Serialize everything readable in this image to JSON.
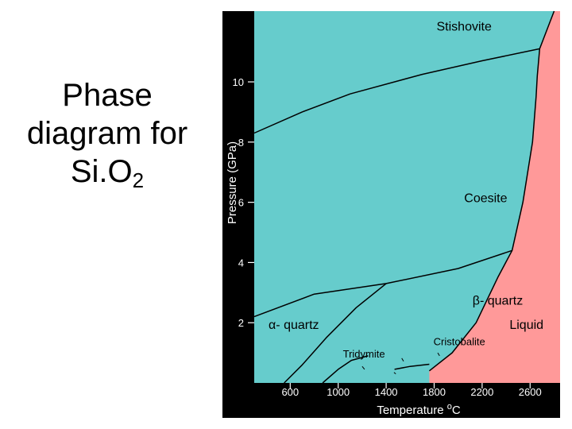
{
  "slide": {
    "title_line1": "Phase",
    "title_line2": "diagram for",
    "title_formula_main": "Si.O",
    "title_formula_sub": "2"
  },
  "chart_data": {
    "type": "phase-diagram",
    "title": "Phase diagram for SiO2",
    "xlabel": "Temperature °C",
    "xlabel_main": "Temperature ",
    "xlabel_sup": "o",
    "xlabel_unit": "C",
    "ylabel": "Pressure (GPa)",
    "xlim": [
      300,
      2850
    ],
    "ylim": [
      0,
      12.35
    ],
    "x_ticks": [
      600,
      1000,
      1400,
      1800,
      2200,
      2600
    ],
    "y_ticks": [
      2,
      4,
      6,
      8,
      10
    ],
    "colors": {
      "background": "#000000",
      "solid": "#66CCCC",
      "liquid": "#FF9999",
      "line": "#000000",
      "axis_text": "#ffffff",
      "label_text": "#000000"
    },
    "regions": [
      {
        "id": "liquid",
        "name": "Liquid",
        "at": [
          2570,
          1.8
        ],
        "color": "#FF9999"
      }
    ],
    "phase_labels": [
      {
        "id": "stishovite",
        "text": "Stishovite",
        "at": [
          2050,
          11.7
        ]
      },
      {
        "id": "coesite",
        "text": "Coesite",
        "at": [
          2230,
          6.0
        ]
      },
      {
        "id": "beta-quartz",
        "text": "β- quartz",
        "at": [
          2330,
          2.6
        ]
      },
      {
        "id": "alpha-quartz",
        "text": "α- quartz",
        "at": [
          630,
          1.8
        ]
      },
      {
        "id": "cristobalite",
        "text": "Cristobalite",
        "at": [
          2010,
          1.25
        ]
      },
      {
        "id": "tridymite",
        "text": "Tridymite",
        "at": [
          1215,
          0.85
        ]
      },
      {
        "id": "liquid",
        "text": "Liquid",
        "at": [
          2570,
          1.8
        ]
      }
    ],
    "boundaries": [
      {
        "id": "stishovite-coesite",
        "points": [
          [
            300,
            8.3
          ],
          [
            700,
            9.0
          ],
          [
            1100,
            9.6
          ],
          [
            1700,
            10.25
          ],
          [
            2200,
            10.7
          ],
          [
            2680,
            11.1
          ]
        ]
      },
      {
        "id": "coesite-quartz",
        "points": [
          [
            300,
            2.2
          ],
          [
            800,
            2.95
          ],
          [
            1400,
            3.3
          ],
          [
            2000,
            3.8
          ],
          [
            2450,
            4.4
          ]
        ]
      },
      {
        "id": "liquidus",
        "points": [
          [
            1760,
            0.4
          ],
          [
            1950,
            1.0
          ],
          [
            2150,
            2.0
          ],
          [
            2330,
            3.5
          ],
          [
            2450,
            4.4
          ],
          [
            2540,
            6.0
          ],
          [
            2620,
            8.0
          ],
          [
            2650,
            9.5
          ],
          [
            2660,
            10.2
          ],
          [
            2680,
            11.1
          ],
          [
            2800,
            12.35
          ]
        ]
      },
      {
        "id": "alpha-beta-quartz",
        "points": [
          [
            550,
            0.0
          ],
          [
            700,
            0.6
          ],
          [
            900,
            1.5
          ],
          [
            1150,
            2.5
          ],
          [
            1400,
            3.3
          ]
        ]
      },
      {
        "id": "tridymite-beta-quartz",
        "points": [
          [
            870,
            0.0
          ],
          [
            1000,
            0.45
          ],
          [
            1110,
            0.75
          ],
          [
            1250,
            0.9
          ]
        ]
      },
      {
        "id": "cristobalite-tridymite",
        "points": [
          [
            1470,
            0.45
          ],
          [
            1600,
            0.55
          ],
          [
            1760,
            0.62
          ]
        ]
      }
    ],
    "markers": [
      {
        "id": "tick-tridymite",
        "points": [
          [
            1200,
            0.55
          ],
          [
            1220,
            0.45
          ]
        ]
      },
      {
        "id": "tick-cristobalite",
        "points": [
          [
            1530,
            0.82
          ],
          [
            1545,
            0.72
          ]
        ]
      },
      {
        "id": "dot-a",
        "points": [
          [
            1465,
            0.35
          ],
          [
            1480,
            0.3
          ]
        ]
      },
      {
        "id": "dot-b",
        "points": [
          [
            1830,
            1.0
          ],
          [
            1845,
            0.9
          ]
        ]
      }
    ]
  }
}
